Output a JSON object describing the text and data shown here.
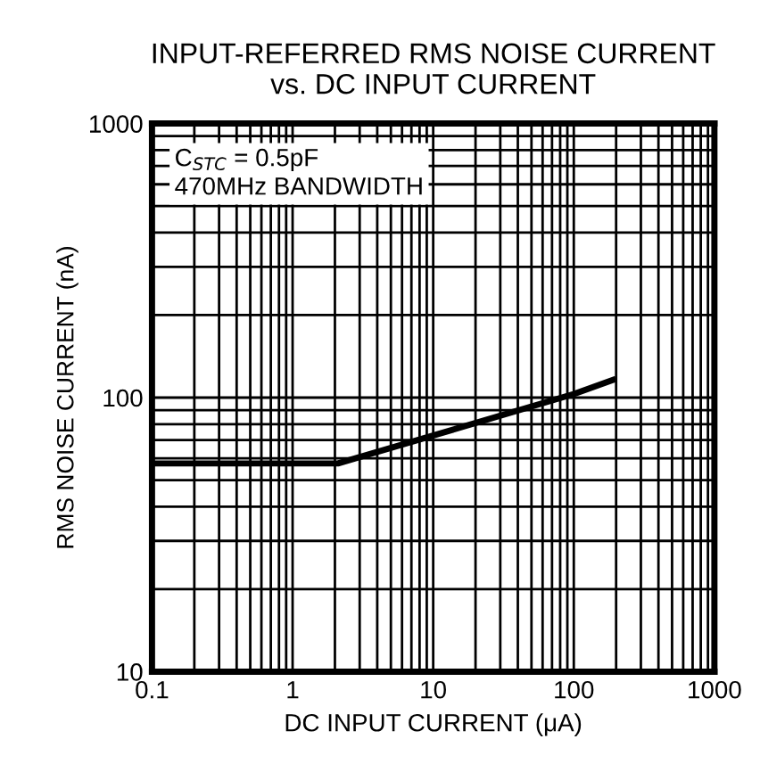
{
  "chart_data": {
    "type": "line",
    "title": "INPUT-REFERRED RMS NOISE CURRENT\nvs. DC INPUT CURRENT",
    "xlabel": "DC INPUT CURRENT (μA)",
    "ylabel": "RMS NOISE CURRENT (nA)",
    "log": "xy",
    "xlim": [
      0.1,
      1000
    ],
    "ylim": [
      10,
      1000
    ],
    "xticks": [
      0.1,
      1,
      10,
      100,
      1000
    ],
    "yticks": [
      10,
      100,
      1000
    ],
    "grid": true,
    "series": [
      {
        "color": "#000000",
        "x": [
          0.1,
          2.1,
          100,
          190
        ],
        "values": [
          57.5,
          57.5,
          103,
          116
        ]
      }
    ],
    "annotations": [
      "C$_{STC}$ = 0.5pF",
      "470MHz BANDWIDTH"
    ]
  }
}
